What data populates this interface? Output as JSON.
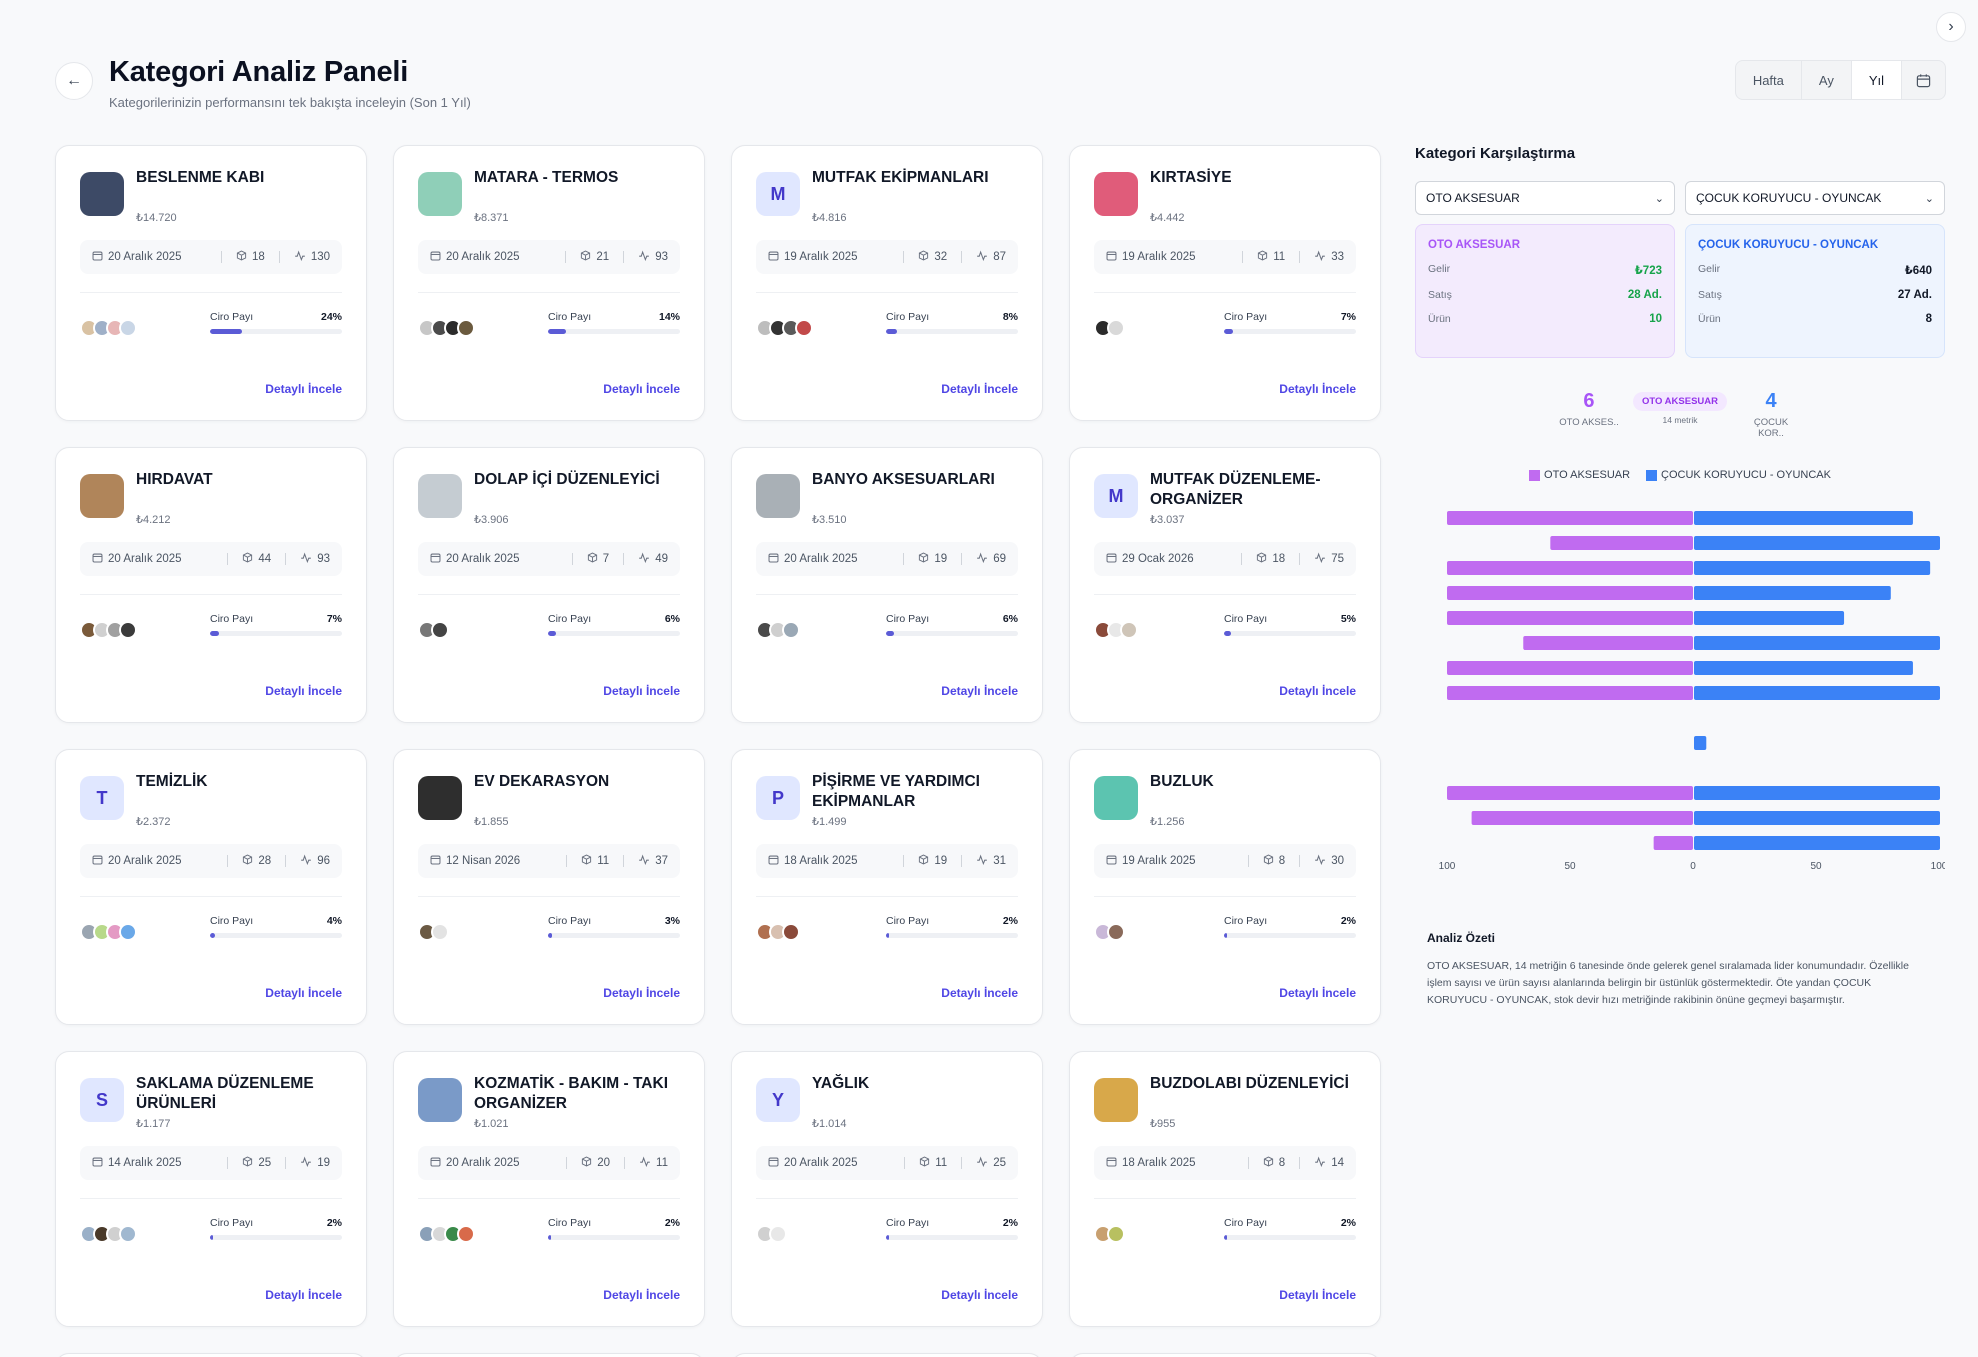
{
  "header": {
    "title": "Kategori Analiz Paneli",
    "subtitle": "Kategorilerinizin performansını tek bakışta inceleyin (Son 1 Yıl)",
    "back_icon": "arrow-left-icon",
    "collapse_icon": "chevron-right-icon"
  },
  "period": {
    "options": [
      "Hafta",
      "Ay",
      "Yıl"
    ],
    "selected": "Yıl",
    "calendar_icon": "calendar-icon"
  },
  "card_labels": {
    "share": "Ciro Payı",
    "detail": "Detaylı İncele"
  },
  "categories": [
    {
      "name": "BESLENME KABI",
      "revenue": "₺14.720",
      "date": "20 Aralık 2025",
      "products": "18",
      "sales": "130",
      "share": "24%",
      "share_value": 24,
      "thumb": {
        "type": "image",
        "color": "#3d4a66"
      },
      "mini_colors": [
        "#d9c2a3",
        "#9fb0c8",
        "#e7b6b6",
        "#c9d6e6"
      ]
    },
    {
      "name": "MATARA - TERMOS",
      "revenue": "₺8.371",
      "date": "20 Aralık 2025",
      "products": "21",
      "sales": "93",
      "share": "14%",
      "share_value": 14,
      "thumb": {
        "type": "image",
        "color": "#8fcfb8"
      },
      "mini_colors": [
        "#c7c7c7",
        "#4b4b4b",
        "#2b2b2b",
        "#6b5a3e"
      ]
    },
    {
      "name": "MUTFAK EKİPMANLARI",
      "revenue": "₺4.816",
      "date": "19 Aralık 2025",
      "products": "32",
      "sales": "87",
      "share": "8%",
      "share_value": 8,
      "thumb": {
        "type": "letter",
        "letter": "M"
      },
      "mini_colors": [
        "#bdbdbd",
        "#333333",
        "#5a5a5a",
        "#c24a4a"
      ]
    },
    {
      "name": "KIRTASİYE",
      "revenue": "₺4.442",
      "date": "19 Aralık 2025",
      "products": "11",
      "sales": "33",
      "share": "7%",
      "share_value": 7,
      "thumb": {
        "type": "image",
        "color": "#e05c7a"
      },
      "mini_colors": [
        "#2b2b2b",
        "#d9d9d9"
      ]
    },
    {
      "name": "HIRDAVAT",
      "revenue": "₺4.212",
      "date": "20 Aralık 2025",
      "products": "44",
      "sales": "93",
      "share": "7%",
      "share_value": 7,
      "thumb": {
        "type": "image",
        "color": "#b0855a"
      },
      "mini_colors": [
        "#7a5a3a",
        "#d0d0d0",
        "#a0a0a0",
        "#3b3b3b"
      ]
    },
    {
      "name": "DOLAP İÇİ DÜZENLEYİCİ",
      "revenue": "₺3.906",
      "date": "20 Aralık 2025",
      "products": "7",
      "sales": "49",
      "share": "6%",
      "share_value": 6,
      "thumb": {
        "type": "image",
        "color": "#c5ccd2"
      },
      "mini_colors": [
        "#777777",
        "#444444"
      ]
    },
    {
      "name": "BANYO AKSESUARLARI",
      "revenue": "₺3.510",
      "date": "20 Aralık 2025",
      "products": "19",
      "sales": "69",
      "share": "6%",
      "share_value": 6,
      "thumb": {
        "type": "image",
        "color": "#a9b0b6"
      },
      "mini_colors": [
        "#4a4a4a",
        "#cfcfcf",
        "#9aa8b5"
      ]
    },
    {
      "name": "MUTFAK DÜZENLEME-ORGANİZER",
      "revenue": "₺3.037",
      "date": "29 Ocak 2026",
      "products": "18",
      "sales": "75",
      "share": "5%",
      "share_value": 5,
      "thumb": {
        "type": "letter",
        "letter": "M"
      },
      "mini_colors": [
        "#8a4a3a",
        "#e8e8e8",
        "#cfc5b8"
      ]
    },
    {
      "name": "TEMİZLİK",
      "revenue": "₺2.372",
      "date": "20 Aralık 2025",
      "products": "28",
      "sales": "96",
      "share": "4%",
      "share_value": 4,
      "thumb": {
        "type": "letter",
        "letter": "T"
      },
      "mini_colors": [
        "#9aa5b1",
        "#b8d98a",
        "#e49ac4",
        "#6aa8e8"
      ]
    },
    {
      "name": "EV DEKARASYON",
      "revenue": "₺1.855",
      "date": "12 Nisan 2026",
      "products": "11",
      "sales": "37",
      "share": "3%",
      "share_value": 3,
      "thumb": {
        "type": "image",
        "color": "#2e2e2e"
      },
      "mini_colors": [
        "#6b5a44",
        "#e3e3e3"
      ]
    },
    {
      "name": "PİŞİRME VE YARDIMCI EKİPMANLAR",
      "revenue": "₺1.499",
      "date": "18 Aralık 2025",
      "products": "19",
      "sales": "31",
      "share": "2%",
      "share_value": 2,
      "thumb": {
        "type": "letter",
        "letter": "P"
      },
      "mini_colors": [
        "#b07050",
        "#d8c0b0",
        "#8a4a3a"
      ]
    },
    {
      "name": "BUZLUK",
      "revenue": "₺1.256",
      "date": "19 Aralık 2025",
      "products": "8",
      "sales": "30",
      "share": "2%",
      "share_value": 2,
      "thumb": {
        "type": "image",
        "color": "#5cc4b0"
      },
      "mini_colors": [
        "#c9b8d8",
        "#8a6a5a"
      ]
    },
    {
      "name": "SAKLAMA DÜZENLEME ÜRÜNLERİ",
      "revenue": "₺1.177",
      "date": "14 Aralık 2025",
      "products": "25",
      "sales": "19",
      "share": "2%",
      "share_value": 2,
      "thumb": {
        "type": "letter",
        "letter": "S"
      },
      "mini_colors": [
        "#9ab0c8",
        "#4a3a2a",
        "#d0d0d0",
        "#a0b8d0"
      ]
    },
    {
      "name": "KOZMATİK - BAKIM - TAKI ORGANİZER",
      "revenue": "₺1.021",
      "date": "20 Aralık 2025",
      "products": "20",
      "sales": "11",
      "share": "2%",
      "share_value": 2,
      "thumb": {
        "type": "image",
        "color": "#7a9ac8"
      },
      "mini_colors": [
        "#8aa0b8",
        "#d8d8d8",
        "#3a8a4a",
        "#d86a4a"
      ]
    },
    {
      "name": "YAĞLIK",
      "revenue": "₺1.014",
      "date": "20 Aralık 2025",
      "products": "11",
      "sales": "25",
      "share": "2%",
      "share_value": 2,
      "thumb": {
        "type": "letter",
        "letter": "Y"
      },
      "mini_colors": [
        "#d0d0d0",
        "#e8e8e8"
      ]
    },
    {
      "name": "BUZDOLABI DÜZENLEYİCİ",
      "revenue": "₺955",
      "date": "18 Aralık 2025",
      "products": "8",
      "sales": "14",
      "share": "2%",
      "share_value": 2,
      "thumb": {
        "type": "image",
        "color": "#d8a84a"
      },
      "mini_colors": [
        "#c8a070",
        "#b8c060"
      ]
    }
  ],
  "comparison": {
    "title": "Kategori Karşılaştırma",
    "a": {
      "name": "OTO AKSESUAR",
      "revenue": "₺723",
      "sales": "28 Ad.",
      "products": "10",
      "short": "OTO AKSES.."
    },
    "b": {
      "name": "ÇOCUK KORUYUCU - OYUNCAK",
      "revenue": "₺640",
      "sales": "27 Ad.",
      "products": "8",
      "short": "ÇOCUK KOR.."
    },
    "row_labels": {
      "revenue": "Gelir",
      "sales": "Satış",
      "products": "Ürün"
    },
    "score": {
      "a": "6",
      "b": "4",
      "winner": "OTO AKSESUAR",
      "metric": "14 metrik"
    },
    "colors": {
      "a": "#c06bf0",
      "b": "#3b82f6"
    }
  },
  "chart_data": {
    "type": "bar",
    "orientation": "horizontal-diverging",
    "series": [
      {
        "name": "OTO AKSESUAR",
        "values": [
          100,
          58,
          100,
          100,
          100,
          69,
          100,
          100,
          0,
          100,
          90,
          16
        ]
      },
      {
        "name": "ÇOCUK KORUYUCU - OYUNCAK",
        "values": [
          89,
          100,
          96,
          80,
          61,
          100,
          89,
          100,
          5,
          100,
          100,
          100
        ]
      }
    ],
    "slots": [
      0,
      1,
      2,
      3,
      4,
      5,
      6,
      7,
      9,
      11,
      12,
      13
    ],
    "slot_count": 14,
    "xlim": [
      -100,
      100
    ],
    "ticks": [
      "100",
      "50",
      "0",
      "50",
      "100"
    ],
    "tick_values": [
      -100,
      -50,
      0,
      50,
      100
    ],
    "legend": "top",
    "grid": false
  },
  "summary": {
    "title": "Analiz Özeti",
    "text": "OTO AKSESUAR, 14 metriğin 6 tanesinde önde gelerek genel sıralamada lider konumundadır. Özellikle işlem sayısı ve ürün sayısı alanlarında belirgin bir üstünlük göstermektedir. Öte yandan ÇOCUK KORUYUCU - OYUNCAK, stok devir hızı metriğinde rakibinin önüne geçmeyi başarmıştır."
  }
}
